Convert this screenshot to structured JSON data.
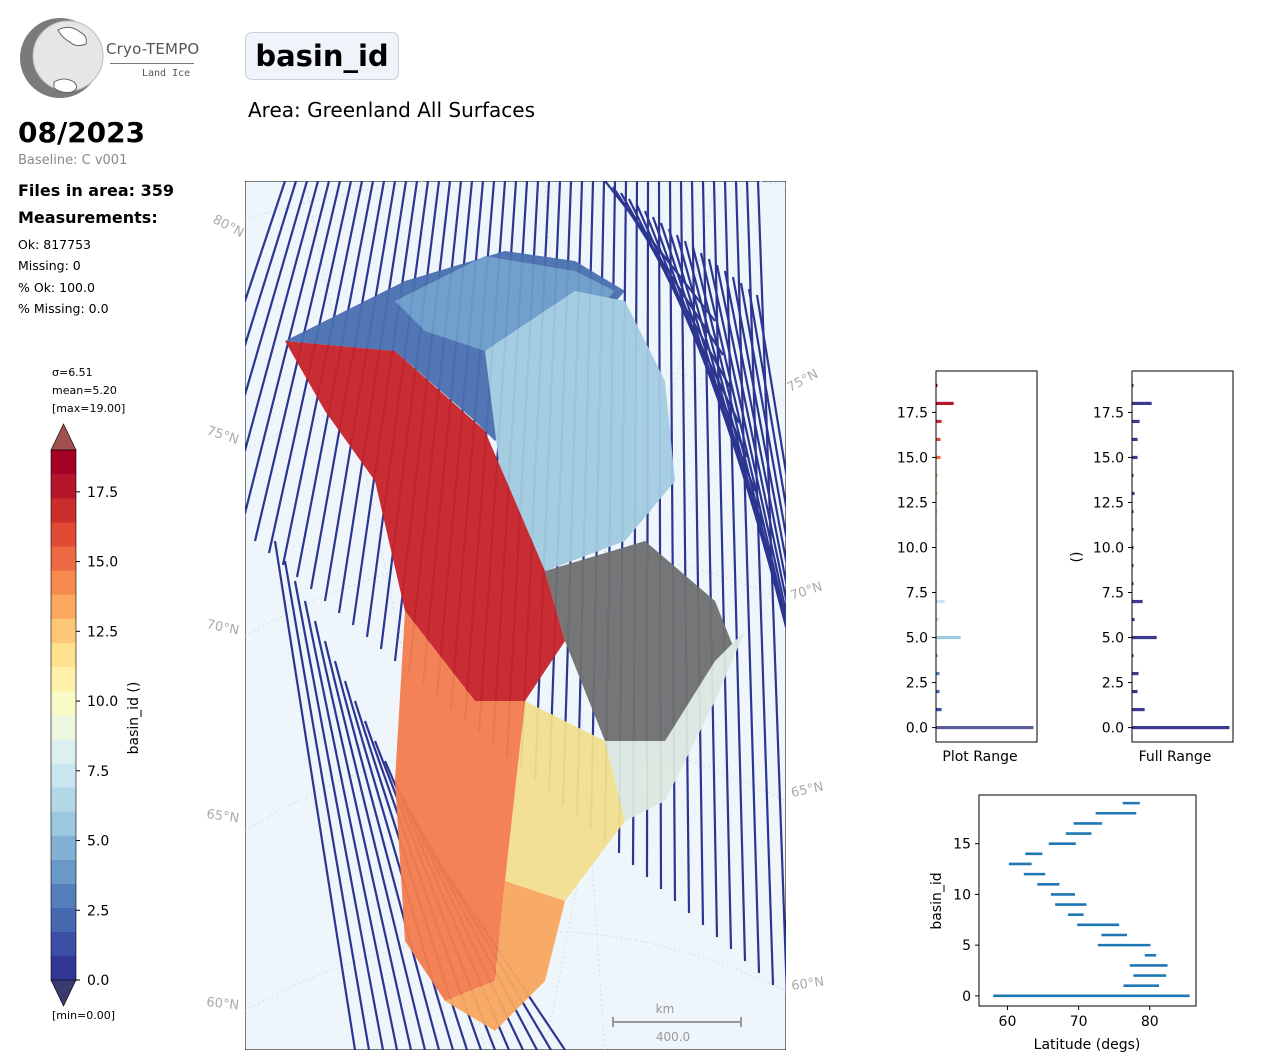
{
  "logo": {
    "title": "Cryo-TEMPO",
    "subtitle": "Land Ice"
  },
  "header": {
    "date": "08/2023",
    "baseline": "Baseline: C v001",
    "files": "Files in area: 359",
    "measurements_title": "Measurements:",
    "stats": [
      "Ok: 817753",
      "Missing: 0",
      "% Ok: 100.0",
      "% Missing: 0.0"
    ],
    "variable": "basin_id",
    "area": "Area: Greenland All Surfaces"
  },
  "colorbar": {
    "sigma": "σ=6.51",
    "mean": "mean=5.20",
    "max": "[max=19.00]",
    "min": "[min=0.00]",
    "label": "basin_id ()",
    "ticks": [
      "0.0",
      "2.5",
      "5.0",
      "7.5",
      "10.0",
      "12.5",
      "15.0",
      "17.5"
    ],
    "colors": [
      "#313695",
      "#3a4ea3",
      "#4568b1",
      "#557fbb",
      "#6a98c7",
      "#82b1d5",
      "#9cc8e0",
      "#b3d8e8",
      "#c9e5ef",
      "#dcf0f2",
      "#ecf7e0",
      "#f8fbc6",
      "#fef2a9",
      "#fee08f",
      "#fdc777",
      "#fca95f",
      "#f78a4f",
      "#ee6a42",
      "#e14a35",
      "#cc2d2c",
      "#b5152b",
      "#a50026"
    ],
    "over_color": "#a0504d",
    "under_color": "#3b3a70"
  },
  "map": {
    "lat_labels_left": [
      "80°N",
      "75°N",
      "70°N",
      "65°N",
      "60°N"
    ],
    "lat_labels_right": [
      "75°N",
      "70°N",
      "65°N",
      "60°N"
    ],
    "scale_unit": "km",
    "scale_value": "400.0",
    "ocean_color": "#eef6fc",
    "track_color": "#2c3590"
  },
  "hist_plot": {
    "xlabel": "Plot Range",
    "ticks": [
      "0.0",
      "2.5",
      "5.0",
      "7.5",
      "10.0",
      "12.5",
      "15.0",
      "17.5"
    ]
  },
  "hist_full": {
    "xlabel": "Full Range",
    "ylabel": "()",
    "ticks": [
      "0.0",
      "2.5",
      "5.0",
      "7.5",
      "10.0",
      "12.5",
      "15.0",
      "17.5"
    ]
  },
  "chart_data": [
    {
      "type": "bar",
      "orientation": "horizontal",
      "title": "",
      "xlabel": "Plot Range",
      "ylabel": "",
      "ylim": [
        -0.8,
        19.8
      ],
      "categories": [
        0,
        1,
        2,
        3,
        4,
        5,
        6,
        7,
        8,
        9,
        10,
        11,
        12,
        13,
        14,
        15,
        16,
        17,
        18,
        19
      ],
      "values": [
        0.96,
        0.05,
        0.03,
        0.03,
        0.01,
        0.24,
        0.02,
        0.08,
        0.01,
        0.01,
        0.01,
        0.01,
        0.01,
        0.01,
        0.01,
        0.04,
        0.04,
        0.05,
        0.17,
        0.01
      ]
    },
    {
      "type": "bar",
      "orientation": "horizontal",
      "title": "",
      "xlabel": "Full Range",
      "ylabel": "()",
      "ylim": [
        -0.8,
        19.8
      ],
      "categories": [
        0,
        1,
        2,
        3,
        4,
        5,
        6,
        7,
        8,
        9,
        10,
        11,
        12,
        13,
        14,
        15,
        16,
        17,
        18,
        19
      ],
      "values": [
        0.96,
        0.12,
        0.05,
        0.06,
        0.01,
        0.24,
        0.02,
        0.1,
        0.01,
        0.01,
        0.01,
        0.01,
        0.01,
        0.02,
        0.01,
        0.05,
        0.05,
        0.07,
        0.19,
        0.01
      ]
    },
    {
      "type": "range",
      "title": "",
      "xlabel": "Latitude (degs)",
      "ylabel": "basin_id",
      "xlim": [
        56,
        86.5
      ],
      "ylim": [
        -1,
        19.8
      ],
      "xticks": [
        60,
        70,
        80
      ],
      "yticks": [
        0,
        5,
        10,
        15
      ],
      "series": [
        {
          "values": [
            [
              0,
              58,
              85.6
            ],
            [
              1,
              76.3,
              81.3
            ],
            [
              2,
              77.7,
              82.3
            ],
            [
              3,
              77.2,
              82.5
            ],
            [
              4,
              79.3,
              80.9
            ],
            [
              5,
              72.7,
              80.1
            ],
            [
              6,
              73.2,
              76.8
            ],
            [
              7,
              69.8,
              75.7
            ],
            [
              8,
              68.5,
              70.7
            ],
            [
              9,
              66.7,
              71.1
            ],
            [
              10,
              66.1,
              69.5
            ],
            [
              11,
              64.2,
              67.3
            ],
            [
              12,
              62.3,
              65.3
            ],
            [
              13,
              60.2,
              63.4
            ],
            [
              14,
              62.5,
              64.9
            ],
            [
              15,
              65.8,
              69.6
            ],
            [
              16,
              68.2,
              71.8
            ],
            [
              17,
              69.3,
              73.3
            ],
            [
              18,
              72.4,
              78.1
            ],
            [
              19,
              76.2,
              78.6
            ]
          ]
        }
      ]
    }
  ]
}
